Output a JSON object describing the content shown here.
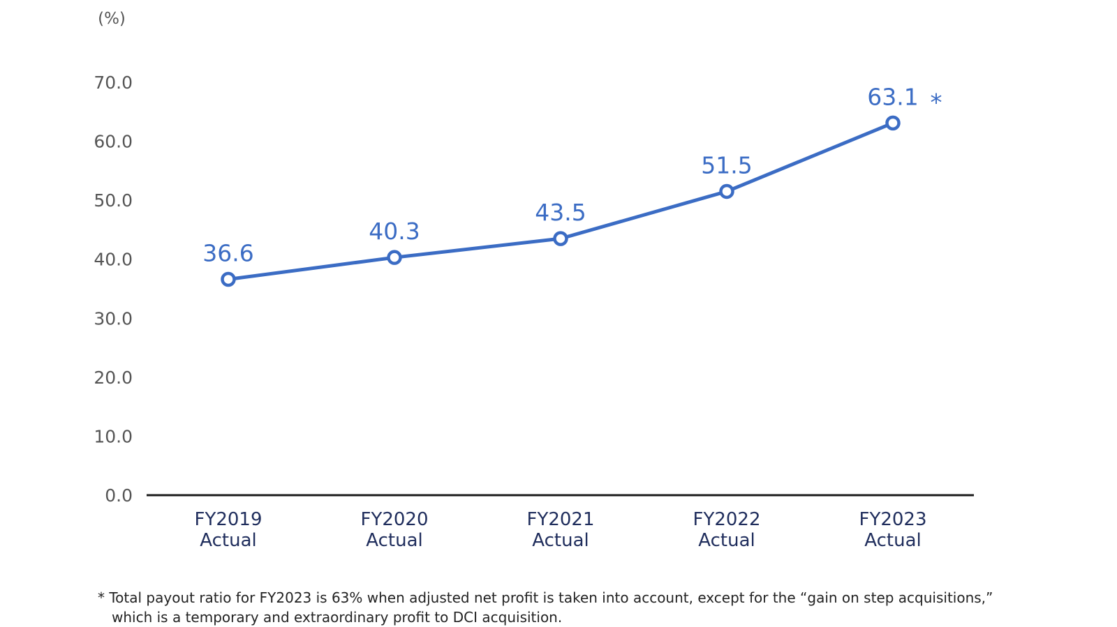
{
  "chart_data": {
    "type": "line",
    "title": "",
    "unit_label": "(%)",
    "xlabel": "",
    "ylabel": "",
    "categories": [
      [
        "FY2019",
        "Actual"
      ],
      [
        "FY2020",
        "Actual"
      ],
      [
        "FY2021",
        "Actual"
      ],
      [
        "FY2022",
        "Actual"
      ],
      [
        "FY2023",
        "Actual"
      ]
    ],
    "series": [
      {
        "name": "Total payout ratio",
        "values": [
          36.6,
          40.3,
          43.5,
          51.5,
          63.1
        ],
        "labels": [
          "36.6",
          "40.3",
          "43.5",
          "51.5",
          "63.1"
        ]
      }
    ],
    "ylim": [
      0,
      70
    ],
    "yticks": [
      "0.0",
      "10.0",
      "20.0",
      "30.0",
      "40.0",
      "50.0",
      "60.0",
      "70.0"
    ],
    "ytick_values": [
      0,
      10,
      20,
      30,
      40,
      50,
      60,
      70
    ],
    "grid": false,
    "annotation_marker": "*",
    "colors": {
      "line": "#3B6CC4",
      "label": "#3B6CC4",
      "axis": "#1a1a1a",
      "tick_text": "#555555",
      "category_text": "#1F2D5C"
    }
  },
  "footnote": {
    "line1": "* Total payout ratio for FY2023 is 63% when adjusted net profit is taken into account, except for the “gain on step acquisitions,”",
    "line2": "which is a temporary and extraordinary profit to DCI acquisition."
  }
}
